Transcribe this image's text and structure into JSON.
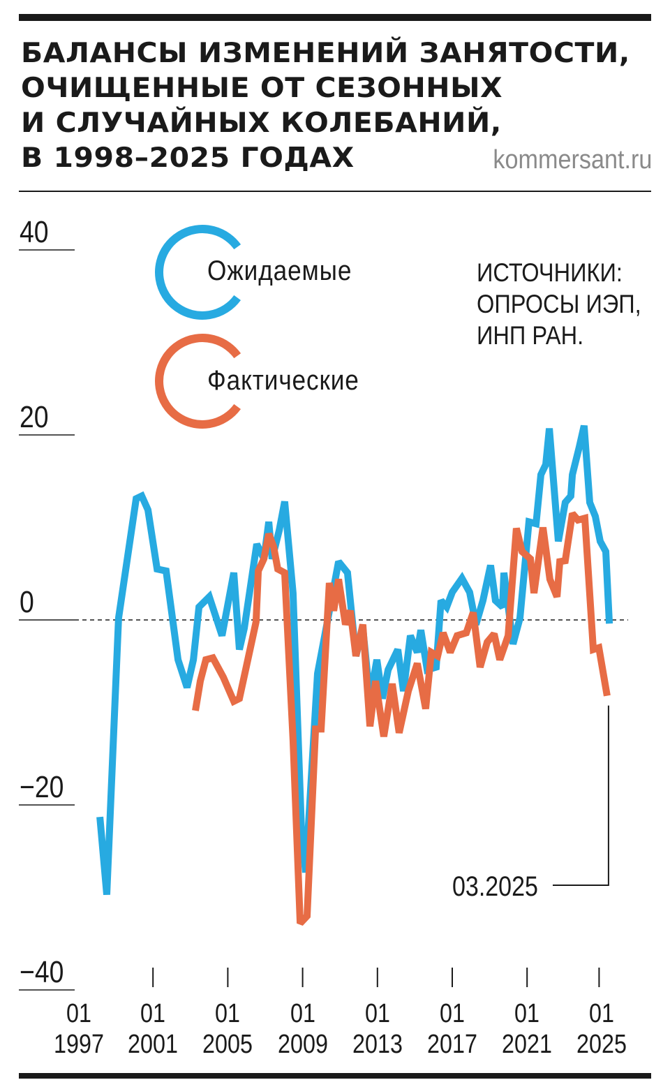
{
  "header": {
    "title_lines": [
      "БАЛАНСЫ ИЗМЕНЕНИЙ ЗАНЯТОСТИ,",
      "ОЧИЩЕННЫЕ ОТ СЕЗОННЫХ",
      "И СЛУЧАЙНЫХ КОЛЕБАНИЙ,",
      "В 1998–2025 ГОДАХ"
    ],
    "brand": "kommersant.ru"
  },
  "sources": [
    "ИСТОЧНИКИ:",
    "ОПРОСЫ ИЭП,",
    "ИНП РАН."
  ],
  "colors": {
    "expected": "#27aae1",
    "actual": "#e76c45",
    "text": "#1a1a1a"
  },
  "chart_data": {
    "type": "line",
    "title": "БАЛАНСЫ ИЗМЕНЕНИЙ ЗАНЯТОСТИ, ОЧИЩЕННЫЕ ОТ СЕЗОННЫХ И СЛУЧАЙНЫХ КОЛЕБАНИЙ, В 1998–2025 ГОДАХ",
    "xlabel": "",
    "ylabel": "",
    "ylim": [
      -40,
      40
    ],
    "xlim": [
      1997,
      2025.5
    ],
    "yticks": [
      40,
      20,
      0,
      -20,
      -40
    ],
    "ytick_labels": [
      "40",
      "20",
      "0",
      "−20",
      "−40"
    ],
    "xticks": [
      1997,
      2001,
      2005,
      2009,
      2013,
      2017,
      2021,
      2025
    ],
    "xtick_labels": [
      [
        "01",
        "1997"
      ],
      [
        "01",
        "2001"
      ],
      [
        "01",
        "2005"
      ],
      [
        "01",
        "2009"
      ],
      [
        "01",
        "2013"
      ],
      [
        "01",
        "2017"
      ],
      [
        "01",
        "2021"
      ],
      [
        "01",
        "2025"
      ]
    ],
    "zero_line": "dashed",
    "legend_placement": "top-left",
    "annotation": "03.2025",
    "series": [
      {
        "name": "Ожидаемые",
        "color": "#27aae1",
        "points": [
          [
            1998.16,
            -21.3
          ],
          [
            1998.53,
            -29.7
          ],
          [
            1999.16,
            0.2
          ],
          [
            2000.1,
            13.1
          ],
          [
            2000.4,
            13.4
          ],
          [
            2000.73,
            11.9
          ],
          [
            2001.22,
            5.5
          ],
          [
            2001.7,
            5.3
          ],
          [
            2002.34,
            -4.3
          ],
          [
            2002.82,
            -7.3
          ],
          [
            2003.16,
            -4.3
          ],
          [
            2003.46,
            1.4
          ],
          [
            2004.01,
            2.5
          ],
          [
            2004.69,
            -1.7
          ],
          [
            2005.32,
            5.1
          ],
          [
            2005.62,
            -3.2
          ],
          [
            2005.88,
            -0.9
          ],
          [
            2006.55,
            8.2
          ],
          [
            2006.93,
            6.6
          ],
          [
            2007.19,
            10.6
          ],
          [
            2007.37,
            6.6
          ],
          [
            2007.75,
            9.7
          ],
          [
            2008.04,
            12.8
          ],
          [
            2008.49,
            2.9
          ],
          [
            2008.94,
            -22.8
          ],
          [
            2009.16,
            -27.3
          ],
          [
            2009.8,
            -5.8
          ],
          [
            2010.36,
            0.2
          ],
          [
            2010.92,
            6.3
          ],
          [
            2011.4,
            5.1
          ],
          [
            2011.85,
            -3.9
          ],
          [
            2012.22,
            -0.9
          ],
          [
            2012.6,
            -8.5
          ],
          [
            2012.97,
            -4.3
          ],
          [
            2013.27,
            -8.5
          ],
          [
            2013.57,
            -5.4
          ],
          [
            2014.09,
            -3.2
          ],
          [
            2014.39,
            -7.7
          ],
          [
            2014.76,
            -1.7
          ],
          [
            2015.13,
            -3.5
          ],
          [
            2015.32,
            -1.1
          ],
          [
            2015.66,
            -5.4
          ],
          [
            2016.14,
            -5.1
          ],
          [
            2016.4,
            2.1
          ],
          [
            2016.7,
            1.4
          ],
          [
            2017.0,
            3.0
          ],
          [
            2017.52,
            4.5
          ],
          [
            2017.93,
            3.0
          ],
          [
            2018.27,
            -0.5
          ],
          [
            2018.64,
            2.1
          ],
          [
            2019.05,
            5.9
          ],
          [
            2019.31,
            2.1
          ],
          [
            2019.69,
            1.4
          ],
          [
            2019.76,
            5.1
          ],
          [
            2020.25,
            -2.6
          ],
          [
            2020.62,
            0.2
          ],
          [
            2021.1,
            10.6
          ],
          [
            2021.48,
            10.4
          ],
          [
            2021.74,
            15.7
          ],
          [
            2022.0,
            16.8
          ],
          [
            2022.19,
            20.7
          ],
          [
            2022.67,
            8.5
          ],
          [
            2023.04,
            12.7
          ],
          [
            2023.34,
            13.4
          ],
          [
            2023.42,
            15.7
          ],
          [
            2023.79,
            18.7
          ],
          [
            2024.05,
            21.0
          ],
          [
            2024.35,
            12.7
          ],
          [
            2024.65,
            11.2
          ],
          [
            2024.91,
            8.5
          ],
          [
            2025.21,
            7.4
          ],
          [
            2025.4,
            -0.4
          ]
        ]
      },
      {
        "name": "Фактические",
        "color": "#e76c45",
        "points": [
          [
            2003.27,
            -9.8
          ],
          [
            2003.53,
            -6.6
          ],
          [
            2003.83,
            -4.3
          ],
          [
            2004.2,
            -4.1
          ],
          [
            2004.76,
            -6.2
          ],
          [
            2005.32,
            -8.8
          ],
          [
            2005.62,
            -8.5
          ],
          [
            2006.07,
            -4.3
          ],
          [
            2006.51,
            -0.2
          ],
          [
            2006.63,
            5.3
          ],
          [
            2006.93,
            6.6
          ],
          [
            2007.19,
            9.3
          ],
          [
            2007.45,
            7.9
          ],
          [
            2007.67,
            5.5
          ],
          [
            2008.04,
            5.1
          ],
          [
            2008.49,
            -13.0
          ],
          [
            2008.87,
            -32.8
          ],
          [
            2009.24,
            -32.0
          ],
          [
            2009.69,
            -11.8
          ],
          [
            2009.99,
            -11.8
          ],
          [
            2010.43,
            4.0
          ],
          [
            2010.66,
            1.0
          ],
          [
            2010.92,
            4.4
          ],
          [
            2011.29,
            -0.5
          ],
          [
            2011.55,
            1.0
          ],
          [
            2011.85,
            -3.9
          ],
          [
            2012.22,
            -0.5
          ],
          [
            2012.6,
            -11.5
          ],
          [
            2012.9,
            -6.6
          ],
          [
            2013.34,
            -12.6
          ],
          [
            2013.79,
            -6.9
          ],
          [
            2014.16,
            -12.2
          ],
          [
            2014.65,
            -7.7
          ],
          [
            2015.13,
            -4.7
          ],
          [
            2015.58,
            -9.6
          ],
          [
            2015.88,
            -3.5
          ],
          [
            2016.22,
            -3.9
          ],
          [
            2016.51,
            -1.4
          ],
          [
            2016.89,
            -3.5
          ],
          [
            2017.26,
            -1.7
          ],
          [
            2017.75,
            -1.4
          ],
          [
            2018.12,
            0.8
          ],
          [
            2018.49,
            -5.1
          ],
          [
            2018.87,
            -2.4
          ],
          [
            2019.24,
            -1.5
          ],
          [
            2019.54,
            -4.3
          ],
          [
            2019.99,
            -1.7
          ],
          [
            2020.43,
            9.9
          ],
          [
            2020.73,
            7.4
          ],
          [
            2021.18,
            6.6
          ],
          [
            2021.37,
            2.9
          ],
          [
            2021.85,
            10.0
          ],
          [
            2022.22,
            4.4
          ],
          [
            2022.6,
            2.5
          ],
          [
            2022.75,
            6.3
          ],
          [
            2023.04,
            6.4
          ],
          [
            2023.42,
            11.5
          ],
          [
            2023.72,
            10.8
          ],
          [
            2024.09,
            11.0
          ],
          [
            2024.54,
            -3.2
          ],
          [
            2024.84,
            -3.0
          ],
          [
            2025.28,
            -8.2
          ]
        ]
      }
    ]
  }
}
